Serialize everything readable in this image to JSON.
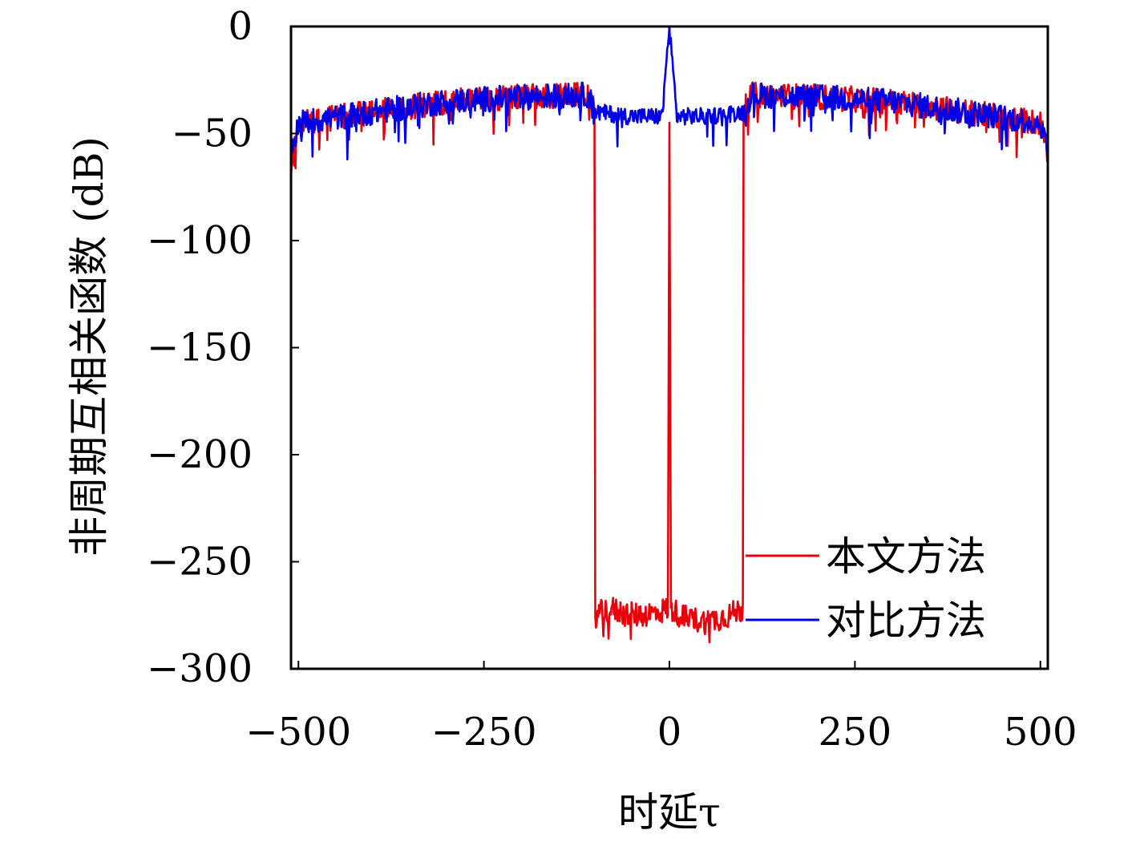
{
  "chart_data": {
    "type": "line",
    "xlabel": "时延τ",
    "ylabel": "非周期互相关函数 (dB)",
    "xlim": [
      -510,
      510
    ],
    "ylim": [
      -300,
      0
    ],
    "xticks": [
      -500,
      -250,
      0,
      250,
      500
    ],
    "xtick_labels": [
      "−500",
      "−250",
      "0",
      "250",
      "500"
    ],
    "yticks": [
      0,
      -50,
      -100,
      -150,
      -200,
      -250,
      -300
    ],
    "ytick_labels": [
      "0",
      "−50",
      "−100",
      "−150",
      "−200",
      "−250",
      "−300"
    ],
    "legend_position": "bottom-right",
    "grid": false,
    "series": [
      {
        "name": "本文方法",
        "color": "#e8000b",
        "description_points": [
          [
            -510,
            -65
          ],
          [
            -500,
            -45
          ],
          [
            -400,
            -40
          ],
          [
            -300,
            -35
          ],
          [
            -200,
            -33
          ],
          [
            -110,
            -32
          ],
          [
            -101,
            -40
          ],
          [
            -100,
            -275
          ],
          [
            -80,
            -272
          ],
          [
            -50,
            -275
          ],
          [
            -20,
            -274
          ],
          [
            -2,
            -272
          ],
          [
            0,
            -45
          ],
          [
            2,
            -272
          ],
          [
            20,
            -276
          ],
          [
            50,
            -278
          ],
          [
            80,
            -275
          ],
          [
            99,
            -272
          ],
          [
            100,
            -40
          ],
          [
            110,
            -32
          ],
          [
            200,
            -33
          ],
          [
            300,
            -35
          ],
          [
            400,
            -40
          ],
          [
            500,
            -45
          ],
          [
            510,
            -60
          ]
        ]
      },
      {
        "name": "对比方法",
        "color": "#0000e6",
        "description_points": [
          [
            -510,
            -60
          ],
          [
            -500,
            -45
          ],
          [
            -400,
            -40
          ],
          [
            -300,
            -35
          ],
          [
            -200,
            -33
          ],
          [
            -110,
            -32
          ],
          [
            -100,
            -40
          ],
          [
            -50,
            -42
          ],
          [
            -10,
            -42
          ],
          [
            0,
            0
          ],
          [
            10,
            -42
          ],
          [
            50,
            -42
          ],
          [
            100,
            -40
          ],
          [
            110,
            -32
          ],
          [
            200,
            -33
          ],
          [
            300,
            -35
          ],
          [
            400,
            -40
          ],
          [
            500,
            -45
          ],
          [
            510,
            -58
          ]
        ]
      }
    ]
  }
}
